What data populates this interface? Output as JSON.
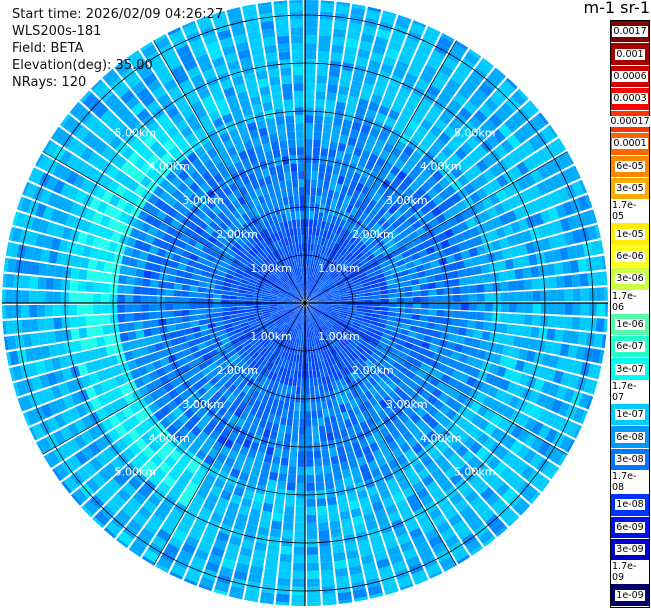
{
  "info": {
    "start_time": "Start time: 2026/02/09 04:26:27",
    "instrument": "WLS200s-181",
    "field": "Field: BETA",
    "elevation": "Elevation(deg): 35.00",
    "nrays": "NRays: 120"
  },
  "colorbar": {
    "units_label": "m-1 sr-1",
    "levels": [
      {
        "label": "0.0017",
        "color": "#800000"
      },
      {
        "label": "0.001",
        "color": "#a50000"
      },
      {
        "label": "0.0006",
        "color": "#cc0000"
      },
      {
        "label": "0.0003",
        "color": "#ff0000"
      },
      {
        "label": "0.00017",
        "color": "#ff3300"
      },
      {
        "label": "0.0001",
        "color": "#ff6600"
      },
      {
        "label": "6e-05",
        "color": "#ff8800"
      },
      {
        "label": "3e-05",
        "color": "#ffaa00"
      },
      {
        "label": "1.7e-05",
        "color": "#ffcc00"
      },
      {
        "label": "1e-05",
        "color": "#ffee00"
      },
      {
        "label": "6e-06",
        "color": "#ffff22"
      },
      {
        "label": "3e-06",
        "color": "#ccff44"
      },
      {
        "label": "1.7e-06",
        "color": "#99ff66"
      },
      {
        "label": "1e-06",
        "color": "#55ffaa"
      },
      {
        "label": "6e-07",
        "color": "#22ffcc"
      },
      {
        "label": "3e-07",
        "color": "#00ffee"
      },
      {
        "label": "1.7e-07",
        "color": "#00eeff"
      },
      {
        "label": "1e-07",
        "color": "#00ccff"
      },
      {
        "label": "6e-08",
        "color": "#0099ff"
      },
      {
        "label": "3e-08",
        "color": "#0077ff"
      },
      {
        "label": "1.7e-08",
        "color": "#0055ff"
      },
      {
        "label": "1e-08",
        "color": "#0033ff"
      },
      {
        "label": "6e-09",
        "color": "#0011ee"
      },
      {
        "label": "3e-09",
        "color": "#0000cc"
      },
      {
        "label": "1.7e-09",
        "color": "#000099"
      },
      {
        "label": "1e-09",
        "color": "#000066"
      }
    ]
  },
  "rings": [
    "1.00km",
    "2.00km",
    "3.00km",
    "4.00km",
    "5.00km"
  ]
}
